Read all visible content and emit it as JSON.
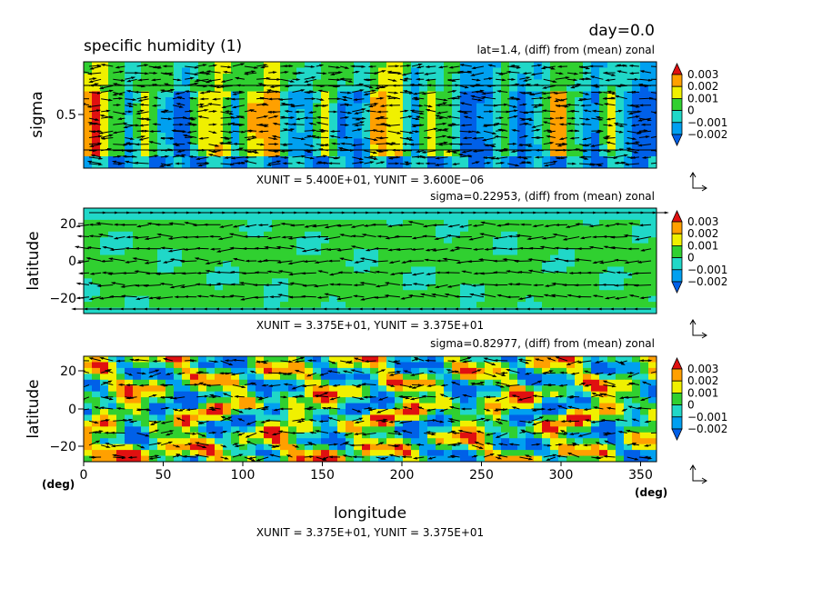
{
  "header": {
    "day_label": "day=0.0",
    "variable_title": "specific humidity (1)"
  },
  "colors": {
    "level_colors": [
      "#0060e8",
      "#00a0f0",
      "#20d8c8",
      "#30d030",
      "#f0f000",
      "#ffa000",
      "#e01010"
    ],
    "vector_color": "#000000",
    "frame_color": "#000000"
  },
  "colorbar": {
    "tick_labels": [
      "0.003",
      "0.002",
      "0.001",
      "0",
      "−0.001",
      "−0.002"
    ]
  },
  "x_axis": {
    "label": "longitude",
    "unit_left": "(deg)",
    "unit_right": "(deg)",
    "ticks": [
      "0",
      "50",
      "100",
      "150",
      "200",
      "250",
      "300",
      "350"
    ]
  },
  "bottom_units": "XUNIT = 3.375E+01, YUNIT = 3.375E+01",
  "chart_data": [
    {
      "type": "heatmap",
      "subtitle": "lat=1.4, (diff) from (mean) zonal",
      "xlabel": "longitude (deg)",
      "ylabel": "sigma",
      "y_ticks": [
        "0.5"
      ],
      "xlim": [
        0,
        360
      ],
      "ylim": [
        1,
        0
      ],
      "contour_levels": [
        -0.002,
        -0.001,
        0,
        0.001,
        0.002,
        0.003
      ],
      "units_label": "XUNIT = 5.400E+01, YUNIT = 3.600E−06",
      "vectors": true
    },
    {
      "type": "heatmap",
      "subtitle": "sigma=0.22953, (diff) from (mean) zonal",
      "xlabel": "longitude (deg)",
      "ylabel": "latitude",
      "y_ticks": [
        "20",
        "0",
        "−20"
      ],
      "xlim": [
        0,
        360
      ],
      "ylim": [
        -28,
        28
      ],
      "contour_levels": [
        -0.002,
        -0.001,
        0,
        0.001,
        0.002,
        0.003
      ],
      "units_label": "XUNIT = 3.375E+01, YUNIT = 3.375E+01",
      "vectors": true
    },
    {
      "type": "heatmap",
      "subtitle": "sigma=0.82977, (diff) from (mean) zonal",
      "xlabel": "longitude (deg)",
      "ylabel": "latitude",
      "y_ticks": [
        "20",
        "0",
        "−20"
      ],
      "xlim": [
        0,
        360
      ],
      "ylim": [
        -28,
        28
      ],
      "contour_levels": [
        -0.002,
        -0.001,
        0,
        0.001,
        0.002,
        0.003
      ],
      "units_label": "XUNIT = 3.375E+01, YUNIT = 3.375E+01",
      "vectors": true
    }
  ]
}
